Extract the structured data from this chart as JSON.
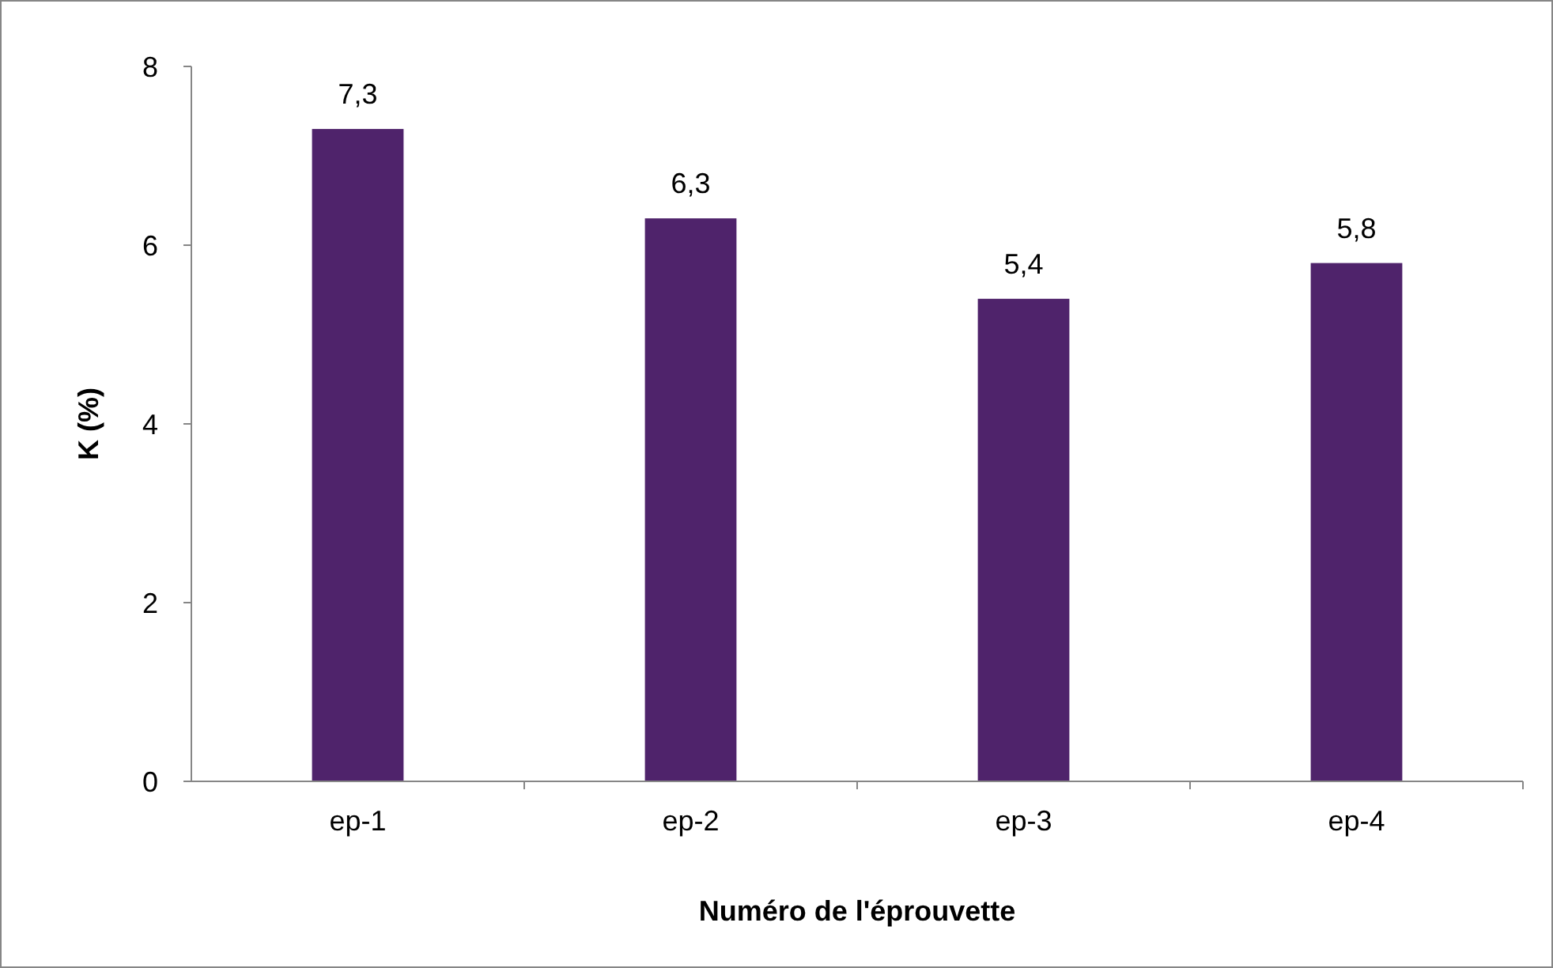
{
  "chart_data": {
    "type": "bar",
    "xlabel": "Numéro de l'éprouvette",
    "ylabel": "K (%)",
    "categories": [
      "ep-1",
      "ep-2",
      "ep-3",
      "ep-4"
    ],
    "values": [
      7.3,
      6.3,
      5.4,
      5.8
    ],
    "value_labels": [
      "7,3",
      "6,3",
      "5,4",
      "5,8"
    ],
    "color": "#4f236b",
    "ylim": [
      0,
      8
    ],
    "yticks": [
      0,
      2,
      4,
      6,
      8
    ],
    "grid": false
  }
}
